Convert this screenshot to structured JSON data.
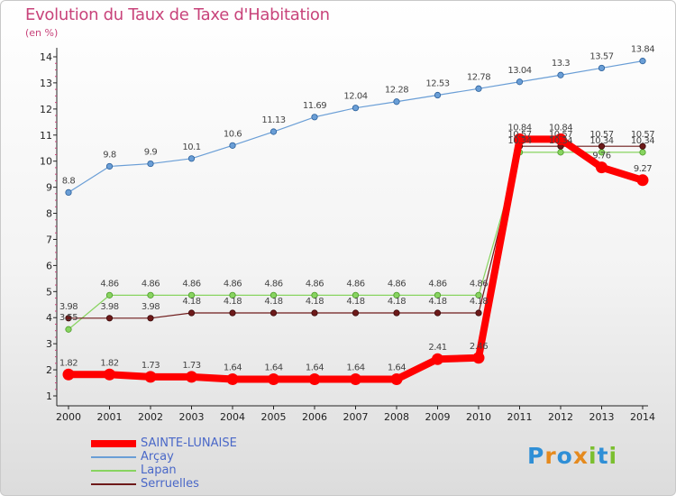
{
  "chart_data": {
    "type": "line",
    "title": "Evolution du Taux de Taxe d'Habitation",
    "ylabel": "(en %)",
    "categories": [
      "2000",
      "2001",
      "2002",
      "2003",
      "2004",
      "2005",
      "2006",
      "2007",
      "2008",
      "2009",
      "2010",
      "2011",
      "2012",
      "2013",
      "2014"
    ],
    "ylim": [
      1,
      14
    ],
    "yticks": [
      "1",
      "2",
      "3",
      "4",
      "5",
      "6",
      "7",
      "8",
      "9",
      "10",
      "11",
      "12",
      "13",
      "14"
    ],
    "grid": false,
    "legend_placement": "bottom-left",
    "series": [
      {
        "name": "SAINTE-LUNAISE",
        "color": "#ff0000",
        "values": [
          1.82,
          1.82,
          1.73,
          1.73,
          1.64,
          1.64,
          1.64,
          1.64,
          1.64,
          2.41,
          2.46,
          10.84,
          10.84,
          9.76,
          9.27
        ],
        "labels": [
          "1.82",
          "1.82",
          "1.73",
          "1.73",
          "1.64",
          "1.64",
          "1.64",
          "1.64",
          "1.64",
          "2.41",
          "2.46",
          "10.84",
          "10.84",
          "9.76",
          "9.27"
        ]
      },
      {
        "name": "Arçay",
        "color": "#6a9ed6",
        "values": [
          8.8,
          9.8,
          9.9,
          10.1,
          10.6,
          11.13,
          11.69,
          12.04,
          12.28,
          12.53,
          12.78,
          13.04,
          13.3,
          13.57,
          13.84
        ],
        "labels": [
          "8.8",
          "9.8",
          "9.9",
          "10.1",
          "10.6",
          "11.13",
          "11.69",
          "12.04",
          "12.28",
          "12.53",
          "12.78",
          "13.04",
          "13.3",
          "13.57",
          "13.84"
        ]
      },
      {
        "name": "Lapan",
        "color": "#88d460",
        "values": [
          3.55,
          4.86,
          4.86,
          4.86,
          4.86,
          4.86,
          4.86,
          4.86,
          4.86,
          4.86,
          4.86,
          10.34,
          10.34,
          10.34,
          10.34
        ],
        "labels": [
          "3.55",
          "4.86",
          "4.86",
          "4.86",
          "4.86",
          "4.86",
          "4.86",
          "4.86",
          "4.86",
          "4.86",
          "4.86",
          "10.34",
          "10.34",
          "10.34",
          "10.34"
        ]
      },
      {
        "name": "Serruelles",
        "color": "#6e1a1a",
        "values": [
          3.98,
          3.98,
          3.98,
          4.18,
          4.18,
          4.18,
          4.18,
          4.18,
          4.18,
          4.18,
          4.18,
          10.57,
          10.57,
          10.57,
          10.57
        ],
        "labels": [
          "3.98",
          "3.98",
          "3.98",
          "4.18",
          "4.18",
          "4.18",
          "4.18",
          "4.18",
          "4.18",
          "4.18",
          "4.18",
          "10.57",
          "10.57",
          "10.57",
          "10.57"
        ]
      }
    ]
  },
  "logo": {
    "text": "Proxiti",
    "colors": [
      "#2f8fd6",
      "#e58a1e",
      "#2f8fd6",
      "#e58a1e",
      "#7bbf2f",
      "#2f8fd6",
      "#7bbf2f"
    ]
  }
}
